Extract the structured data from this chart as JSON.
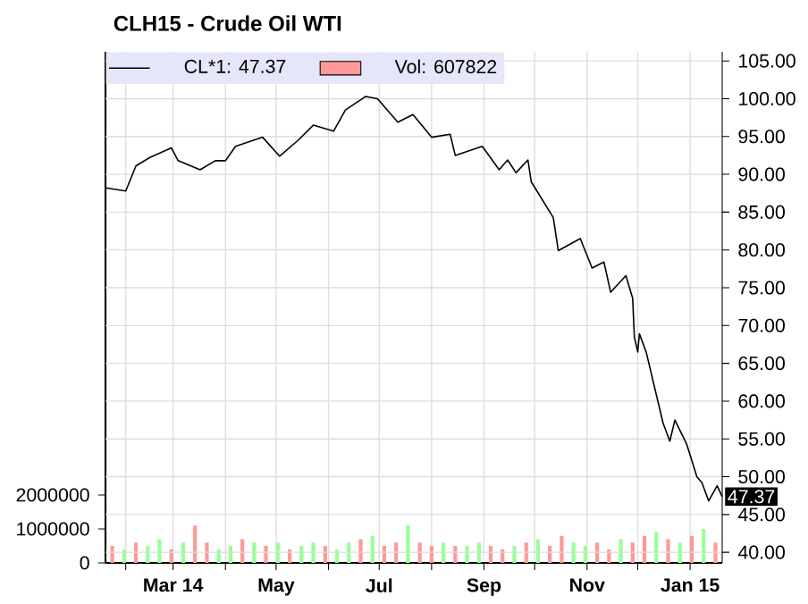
{
  "chart_data": {
    "type": "line",
    "title": "CLH15 - Crude Oil WTI",
    "xlim": [
      "2014-01-20",
      "2015-01-20"
    ],
    "xticks": [
      {
        "value": "2014-02-01",
        "label": null
      },
      {
        "value": "2014-03-01",
        "label": "Mar 14"
      },
      {
        "value": "2014-04-01",
        "label": null
      },
      {
        "value": "2014-05-01",
        "label": "May"
      },
      {
        "value": "2014-06-01",
        "label": null
      },
      {
        "value": "2014-07-01",
        "label": "Jul"
      },
      {
        "value": "2014-08-01",
        "label": null
      },
      {
        "value": "2014-09-01",
        "label": "Sep"
      },
      {
        "value": "2014-10-01",
        "label": null
      },
      {
        "value": "2014-11-01",
        "label": "Nov"
      },
      {
        "value": "2014-12-01",
        "label": null
      },
      {
        "value": "2015-01-01",
        "label": "Jan 15"
      }
    ],
    "ylim": [
      0,
      15050000
    ],
    "yticks": [
      0,
      1000000,
      2000000
    ],
    "y2lim": [
      38.6,
      106.2
    ],
    "y2ticks": [
      {
        "value": 40,
        "label": "40.00"
      },
      {
        "value": 45,
        "label": "45.00"
      },
      {
        "value": 50,
        "label": "50.00"
      },
      {
        "value": 55,
        "label": "55.00"
      },
      {
        "value": 60,
        "label": "60.00"
      },
      {
        "value": 65,
        "label": "65.00"
      },
      {
        "value": 70,
        "label": "70.00"
      },
      {
        "value": 75,
        "label": "75.00"
      },
      {
        "value": 80,
        "label": "80.00"
      },
      {
        "value": 85,
        "label": "85.00"
      },
      {
        "value": 90,
        "label": "90.00"
      },
      {
        "value": 95,
        "label": "95.00"
      },
      {
        "value": 100,
        "label": "100.00"
      },
      {
        "value": 105,
        "label": "105.00"
      }
    ],
    "grid": true,
    "legend": "top left",
    "annotations": [
      "47.37"
    ],
    "series": [
      {
        "name": "CL*1: 47.37",
        "color": "#000000",
        "axis": "y2",
        "x": [
          "2014-01-20",
          "2014-02-01",
          "2014-02-07",
          "2014-02-15",
          "2014-02-28",
          "2014-03-04",
          "2014-03-17",
          "2014-03-26",
          "2014-04-01",
          "2014-04-07",
          "2014-04-23",
          "2014-05-03",
          "2014-05-14",
          "2014-05-23",
          "2014-06-04",
          "2014-06-11",
          "2014-06-23",
          "2014-06-30",
          "2014-07-12",
          "2014-07-21",
          "2014-08-01",
          "2014-08-12",
          "2014-08-15",
          "2014-08-31",
          "2014-09-10",
          "2014-09-15",
          "2014-09-20",
          "2014-09-27",
          "2014-09-29",
          "2014-10-12",
          "2014-10-15",
          "2014-10-28",
          "2014-11-04",
          "2014-11-11",
          "2014-11-15",
          "2014-11-24",
          "2014-11-28",
          "2014-11-29",
          "2014-12-01",
          "2014-12-02",
          "2014-12-06",
          "2014-12-11",
          "2014-12-16",
          "2014-12-20",
          "2014-12-23",
          "2014-12-30",
          "2015-01-05",
          "2015-01-08",
          "2015-01-12",
          "2015-01-17",
          "2015-01-20"
        ],
        "values": [
          88.2,
          87.8,
          91.1,
          92.2,
          93.5,
          91.8,
          90.6,
          91.8,
          91.8,
          93.7,
          94.9,
          92.4,
          94.5,
          96.5,
          95.7,
          98.5,
          100.3,
          100.0,
          96.9,
          97.9,
          94.9,
          95.3,
          92.5,
          93.7,
          90.6,
          91.9,
          90.2,
          91.9,
          89.0,
          84.3,
          79.9,
          81.5,
          77.6,
          78.4,
          74.4,
          76.6,
          73.6,
          68.5,
          66.5,
          68.9,
          66.5,
          61.8,
          57.1,
          54.7,
          57.5,
          54.3,
          50.0,
          49.2,
          46.8,
          48.8,
          47.37
        ]
      },
      {
        "name": "Vol: 607822",
        "type": "bar",
        "color": "#ff9999",
        "x": [
          "2014-01-24",
          "2014-01-31",
          "2014-02-07",
          "2014-02-14",
          "2014-02-21",
          "2014-02-28",
          "2014-03-07",
          "2014-03-14",
          "2014-03-21",
          "2014-03-28",
          "2014-04-04",
          "2014-04-11",
          "2014-04-18",
          "2014-04-25",
          "2014-05-02",
          "2014-05-09",
          "2014-05-16",
          "2014-05-23",
          "2014-05-30",
          "2014-06-06",
          "2014-06-13",
          "2014-06-20",
          "2014-06-27",
          "2014-07-04",
          "2014-07-11",
          "2014-07-18",
          "2014-07-25",
          "2014-08-01",
          "2014-08-08",
          "2014-08-15",
          "2014-08-22",
          "2014-08-29",
          "2014-09-05",
          "2014-09-12",
          "2014-09-19",
          "2014-09-26",
          "2014-10-03",
          "2014-10-10",
          "2014-10-17",
          "2014-10-24",
          "2014-10-31",
          "2014-11-07",
          "2014-11-14",
          "2014-11-21",
          "2014-11-28",
          "2014-12-05",
          "2014-12-12",
          "2014-12-19",
          "2014-12-26",
          "2015-01-02",
          "2015-01-09",
          "2015-01-16"
        ],
        "values": [
          500000,
          400000,
          600000,
          500000,
          700000,
          400000,
          600000,
          1100000,
          600000,
          400000,
          500000,
          700000,
          600000,
          500000,
          600000,
          400000,
          500000,
          600000,
          500000,
          400000,
          600000,
          700000,
          800000,
          500000,
          600000,
          1100000,
          600000,
          500000,
          600000,
          500000,
          500000,
          600000,
          500000,
          400000,
          500000,
          600000,
          700000,
          500000,
          800000,
          600000,
          500000,
          600000,
          400000,
          700000,
          600000,
          800000,
          900000,
          700000,
          600000,
          800000,
          1000000,
          600000
        ],
        "colors": [
          "#ff9999",
          "#99ff99",
          "#ff9999",
          "#99ff99",
          "#99ff99",
          "#ff9999",
          "#99ff99",
          "#ff9999",
          "#ff9999",
          "#99ff99",
          "#99ff99",
          "#ff9999",
          "#99ff99",
          "#ff9999",
          "#99ff99",
          "#ff9999",
          "#99ff99",
          "#99ff99",
          "#ff9999",
          "#99ff99",
          "#99ff99",
          "#ff9999",
          "#99ff99",
          "#ff9999",
          "#ff9999",
          "#99ff99",
          "#ff9999",
          "#ff9999",
          "#99ff99",
          "#ff9999",
          "#99ff99",
          "#99ff99",
          "#ff9999",
          "#ff9999",
          "#99ff99",
          "#ff9999",
          "#99ff99",
          "#ff9999",
          "#ff9999",
          "#99ff99",
          "#99ff99",
          "#ff9999",
          "#ff9999",
          "#99ff99",
          "#ff9999",
          "#ff9999",
          "#99ff99",
          "#ff9999",
          "#99ff99",
          "#ff9999",
          "#99ff99",
          "#ff9999"
        ]
      }
    ]
  }
}
